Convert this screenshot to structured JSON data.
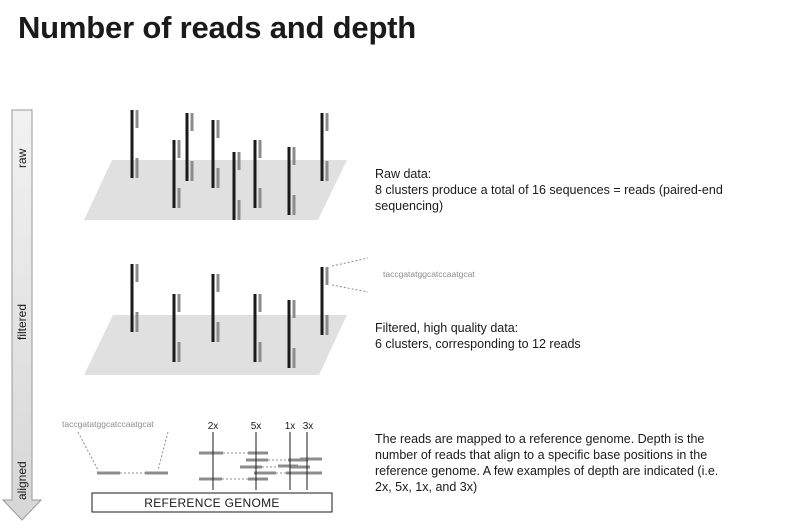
{
  "title": "Number of reads and depth",
  "stages": {
    "raw": "raw",
    "filtered": "filtered",
    "aligned": "aligned"
  },
  "sequence_snippet": "taccgatatggcatccaatgcat",
  "reference_label": "REFERENCE GENOME",
  "depth_labels": [
    "2x",
    "5x",
    "1x",
    "3x"
  ],
  "descriptions": {
    "raw": [
      "Raw data:",
      "8 clusters produce a total of 16 sequences = reads (paired-end",
      "sequencing)"
    ],
    "filtered": [
      "Filtered, high quality data:",
      "6 clusters, corresponding to 12 reads"
    ],
    "aligned": [
      "The reads are mapped to a reference genome. Depth is the",
      "number of reads that align to a specific base positions in the",
      "reference genome. A few examples of depth are indicated (i.e.",
      "2x, 5x, 1x, and 3x)"
    ]
  },
  "colors": {
    "cluster_dark": "#1a1a1a",
    "read_gray": "#8c8c8c",
    "plane": "#e0e0e0",
    "arrow": "#e6e6e6"
  }
}
